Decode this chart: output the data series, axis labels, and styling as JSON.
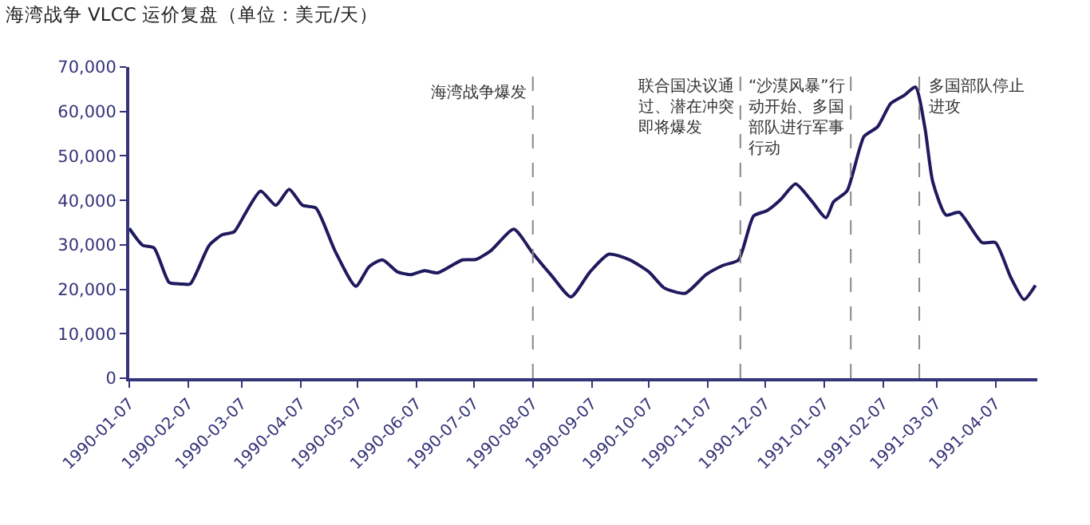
{
  "chart_data": {
    "type": "line",
    "title": "海湾战争 VLCC 运价复盘（单位：美元/天）",
    "x": [
      "1990-01-07",
      "1990-01-14",
      "1990-01-20",
      "1990-01-28",
      "1990-02-03",
      "1990-02-08",
      "1990-02-18",
      "1990-02-25",
      "1990-03-03",
      "1990-03-09",
      "1990-03-17",
      "1990-03-25",
      "1990-04-01",
      "1990-04-08",
      "1990-04-15",
      "1990-04-25",
      "1990-05-06",
      "1990-05-13",
      "1990-05-20",
      "1990-05-28",
      "1990-06-04",
      "1990-06-11",
      "1990-06-18",
      "1990-07-01",
      "1990-07-08",
      "1990-07-16",
      "1990-07-28",
      "1990-08-07",
      "1990-08-17",
      "1990-08-27",
      "1990-09-06",
      "1990-09-16",
      "1990-09-27",
      "1990-10-07",
      "1990-10-15",
      "1990-10-26",
      "1990-11-06",
      "1990-11-15",
      "1990-11-23",
      "1990-12-01",
      "1990-12-08",
      "1990-12-15",
      "1990-12-23",
      "1990-12-31",
      "1991-01-08",
      "1991-01-12",
      "1991-01-19",
      "1991-01-28",
      "1991-02-04",
      "1991-02-11",
      "1991-02-18",
      "1991-02-24",
      "1991-03-01",
      "1991-03-05",
      "1991-03-12",
      "1991-03-19",
      "1991-03-31",
      "1991-04-07",
      "1991-04-15",
      "1991-04-22",
      "1991-04-28"
    ],
    "series": [
      {
        "color": "#1f1a5e",
        "values": [
          33700,
          29900,
          29300,
          21500,
          21200,
          21200,
          29900,
          32300,
          32900,
          37100,
          42100,
          38900,
          42500,
          38900,
          38300,
          28700,
          20700,
          25100,
          26600,
          23900,
          23300,
          24200,
          23700,
          26600,
          26700,
          28700,
          33500,
          28100,
          23000,
          18300,
          23900,
          27900,
          26600,
          23900,
          20300,
          19100,
          23300,
          25400,
          26600,
          36500,
          37700,
          40100,
          43700,
          40100,
          36100,
          39700,
          42100,
          54400,
          56500,
          61800,
          63600,
          65500,
          56200,
          44300,
          36700,
          37300,
          30500,
          30500,
          22700,
          17700,
          20900
        ]
      }
    ],
    "xlim": [
      "1990-01-07",
      "1991-04-29"
    ],
    "xticks": [
      "1990-01-07",
      "1990-02-07",
      "1990-03-07",
      "1990-04-07",
      "1990-05-07",
      "1990-06-07",
      "1990-07-07",
      "1990-08-07",
      "1990-09-07",
      "1990-10-07",
      "1990-11-07",
      "1990-12-07",
      "1991-01-07",
      "1991-02-07",
      "1991-03-07",
      "1991-04-07"
    ],
    "ylim": [
      0,
      70000
    ],
    "yticks": [
      {
        "value": 0,
        "label": "0"
      },
      {
        "value": 10000,
        "label": "10,000"
      },
      {
        "value": 20000,
        "label": "20,000"
      },
      {
        "value": 30000,
        "label": "30,000"
      },
      {
        "value": 40000,
        "label": "40,000"
      },
      {
        "value": 50000,
        "label": "50,000"
      },
      {
        "value": 60000,
        "label": "60,000"
      },
      {
        "value": 70000,
        "label": "70,000"
      }
    ],
    "ref_lines": [
      {
        "axis": "x",
        "value": "1990-08-07",
        "label": "海湾战争爆发",
        "color": "#888888",
        "line_style": "dashed"
      },
      {
        "axis": "x",
        "value": "1990-11-24",
        "label": "联合国决议通过、潜在冲突即将爆发",
        "color": "#888888",
        "line_style": "dashed"
      },
      {
        "axis": "x",
        "value": "1991-01-21",
        "label": "“沙漠风暴”行动开始、多国部队进行军事行动",
        "color": "#888888",
        "line_style": "dashed"
      },
      {
        "axis": "x",
        "value": "1991-02-26",
        "label": "多国部队停止进攻",
        "color": "#888888",
        "line_style": "dashed"
      }
    ],
    "grid": false,
    "marker": "none",
    "line_style": "solid"
  }
}
